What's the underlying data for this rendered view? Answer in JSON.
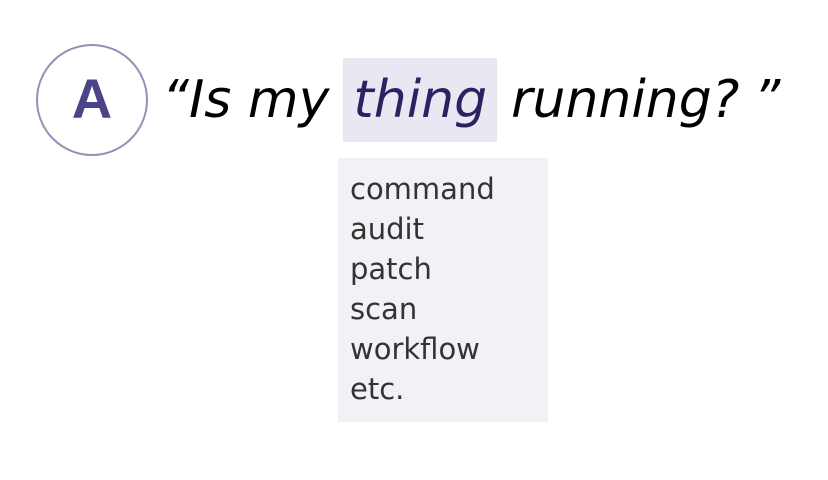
{
  "badge": {
    "letter": "A"
  },
  "question": {
    "open_quote": "“",
    "before": "Is my",
    "highlight": "thing",
    "after": "running?",
    "close_quote": "”"
  },
  "options": [
    "command",
    "audit",
    "patch",
    "scan",
    "workflow",
    "etc."
  ],
  "colors": {
    "accent": "#4b4488",
    "highlight_text": "#2a2363",
    "highlight_bg": "#e9e7f1",
    "circle_border": "#9590b6",
    "options_bg": "#f2f1f6"
  }
}
